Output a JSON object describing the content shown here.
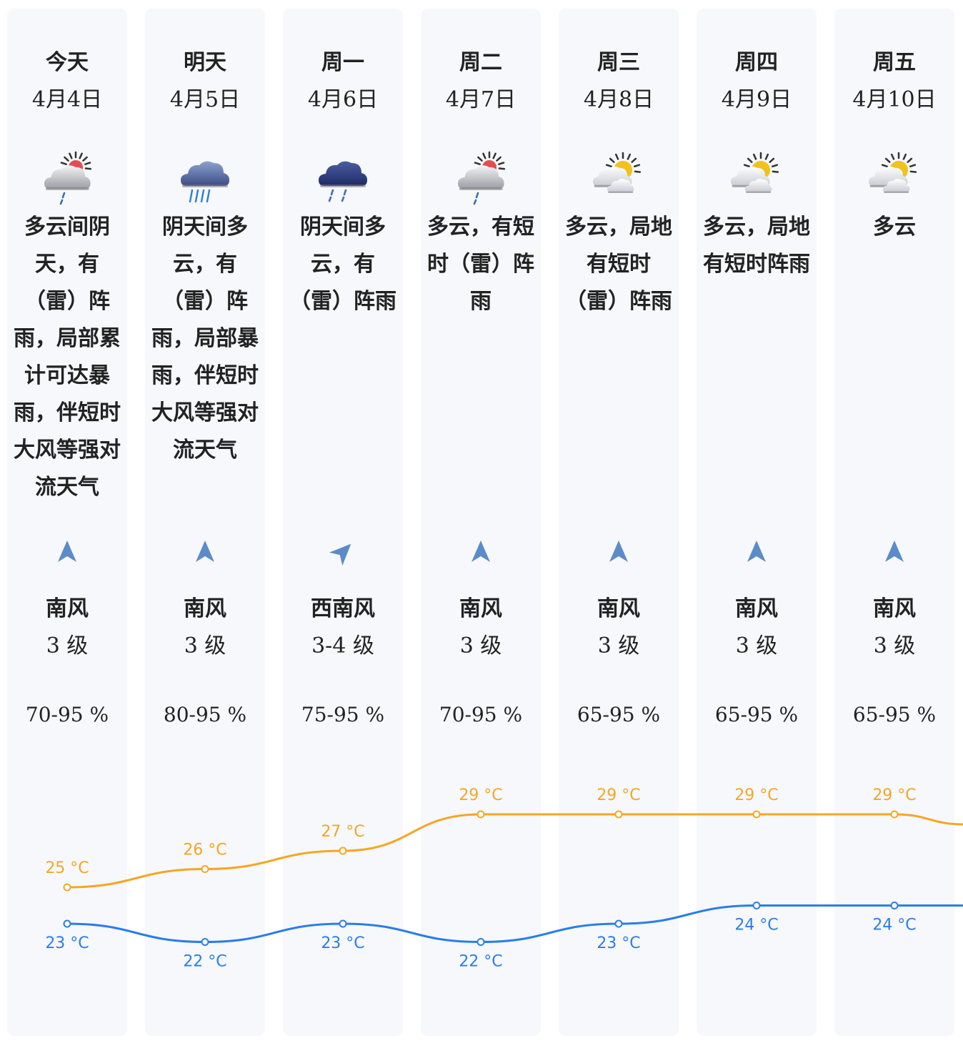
{
  "days": [
    {
      "day": "今天",
      "date": "4月4日",
      "icon": "cloudy-sun-rain-icon",
      "desc": "多云间阴天，有（雷）阵雨，局部累计可达暴雨，伴短时大风等强对流天气",
      "wind_dir": "南风",
      "wind_level": "3 级",
      "wind_angle": 0,
      "humidity": "70-95 %",
      "high": "25 °C",
      "low": "23 °C"
    },
    {
      "day": "明天",
      "date": "4月5日",
      "icon": "heavy-rain-icon",
      "desc": "阴天间多云，有（雷）阵雨，局部暴雨，伴短时大风等强对流天气",
      "wind_dir": "南风",
      "wind_level": "3 级",
      "wind_angle": 0,
      "humidity": "80-95 %",
      "high": "26 °C",
      "low": "22 °C"
    },
    {
      "day": "周一",
      "date": "4月6日",
      "icon": "overcast-rain-icon",
      "desc": "阴天间多云，有（雷）阵雨",
      "wind_dir": "西南风",
      "wind_level": "3-4 级",
      "wind_angle": 45,
      "humidity": "75-95 %",
      "high": "27 °C",
      "low": "23 °C"
    },
    {
      "day": "周二",
      "date": "4月7日",
      "icon": "cloudy-sun-rain-icon",
      "desc": "多云，有短时（雷）阵雨",
      "wind_dir": "南风",
      "wind_level": "3 级",
      "wind_angle": 0,
      "humidity": "70-95 %",
      "high": "29 °C",
      "low": "22 °C"
    },
    {
      "day": "周三",
      "date": "4月8日",
      "icon": "partly-cloudy-icon",
      "desc": "多云，局地有短时（雷）阵雨",
      "wind_dir": "南风",
      "wind_level": "3 级",
      "wind_angle": 0,
      "humidity": "65-95 %",
      "high": "29 °C",
      "low": "23 °C"
    },
    {
      "day": "周四",
      "date": "4月9日",
      "icon": "partly-cloudy-icon",
      "desc": "多云，局地有短时阵雨",
      "wind_dir": "南风",
      "wind_level": "3 级",
      "wind_angle": 0,
      "humidity": "65-95 %",
      "high": "29 °C",
      "low": "24 °C"
    },
    {
      "day": "周五",
      "date": "4月10日",
      "icon": "partly-cloudy-icon",
      "desc": "多云",
      "wind_dir": "南风",
      "wind_level": "3 级",
      "wind_angle": 0,
      "humidity": "65-95 %",
      "high": "29 °C",
      "low": "24 °C"
    }
  ],
  "chart_data": {
    "type": "line",
    "categories": [
      "今天",
      "明天",
      "周一",
      "周二",
      "周三",
      "周四",
      "周五"
    ],
    "series": [
      {
        "name": "high",
        "values": [
          25,
          26,
          27,
          29,
          29,
          29,
          29
        ],
        "color": "#f5a623"
      },
      {
        "name": "low",
        "values": [
          23,
          22,
          23,
          22,
          23,
          24,
          24
        ],
        "color": "#2b7de9"
      }
    ],
    "unit": "°C"
  },
  "colors": {
    "column_bg": "#f6f8fc",
    "high": "#f5a623",
    "low": "#2b7de9",
    "arrow": "#4a7fc1"
  }
}
